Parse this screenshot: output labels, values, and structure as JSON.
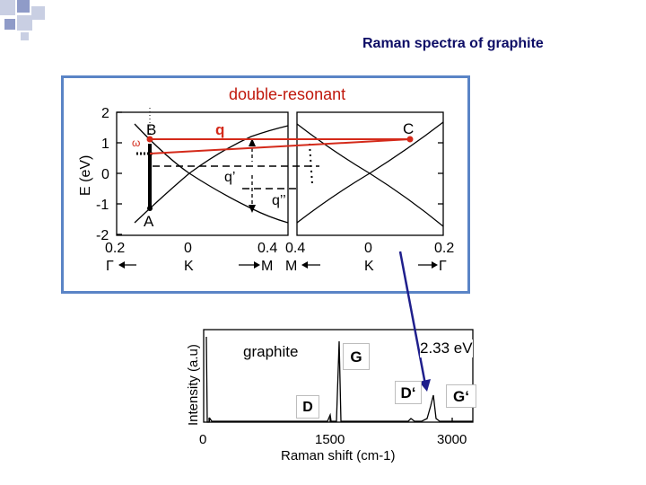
{
  "slide": {
    "title": "Raman spectra of graphite"
  },
  "dispersion_panel": {
    "title": "double-resonant",
    "y_axis_label": "E (eV)",
    "y_ticks": [
      "2",
      "1",
      "0",
      "-1",
      "-2"
    ],
    "x_ticks_left": [
      "0.2",
      "0",
      "0.4"
    ],
    "x_ticks_right": [
      "0.4",
      "0",
      "0.2"
    ],
    "k_point_labels": [
      "Γ",
      "K",
      "M",
      "M",
      "K",
      "Γ"
    ],
    "point_labels": {
      "B": "B",
      "A": "A",
      "C": "C",
      "omega": "ω"
    },
    "wavevector_labels": {
      "q": "q",
      "q_prime": "q’",
      "q_double_prime": "q’’"
    },
    "colors": {
      "frame": "#5a84c6",
      "scattering_arrow": "#d42a1a",
      "title": "#c0180c"
    }
  },
  "spectrum_panel": {
    "sample_label": "graphite",
    "y_axis_label": "Intensity (a.u)",
    "x_axis_label": "Raman shift (cm-1)",
    "x_ticks": [
      "0",
      "1500",
      "3000"
    ],
    "peak_labels": {
      "D": "D",
      "G": "G",
      "D_prime": "D‘",
      "G_prime": "G‘"
    },
    "laser_energy": "2.33 eV",
    "connector_arrow_color": "#1f1f8c"
  }
}
